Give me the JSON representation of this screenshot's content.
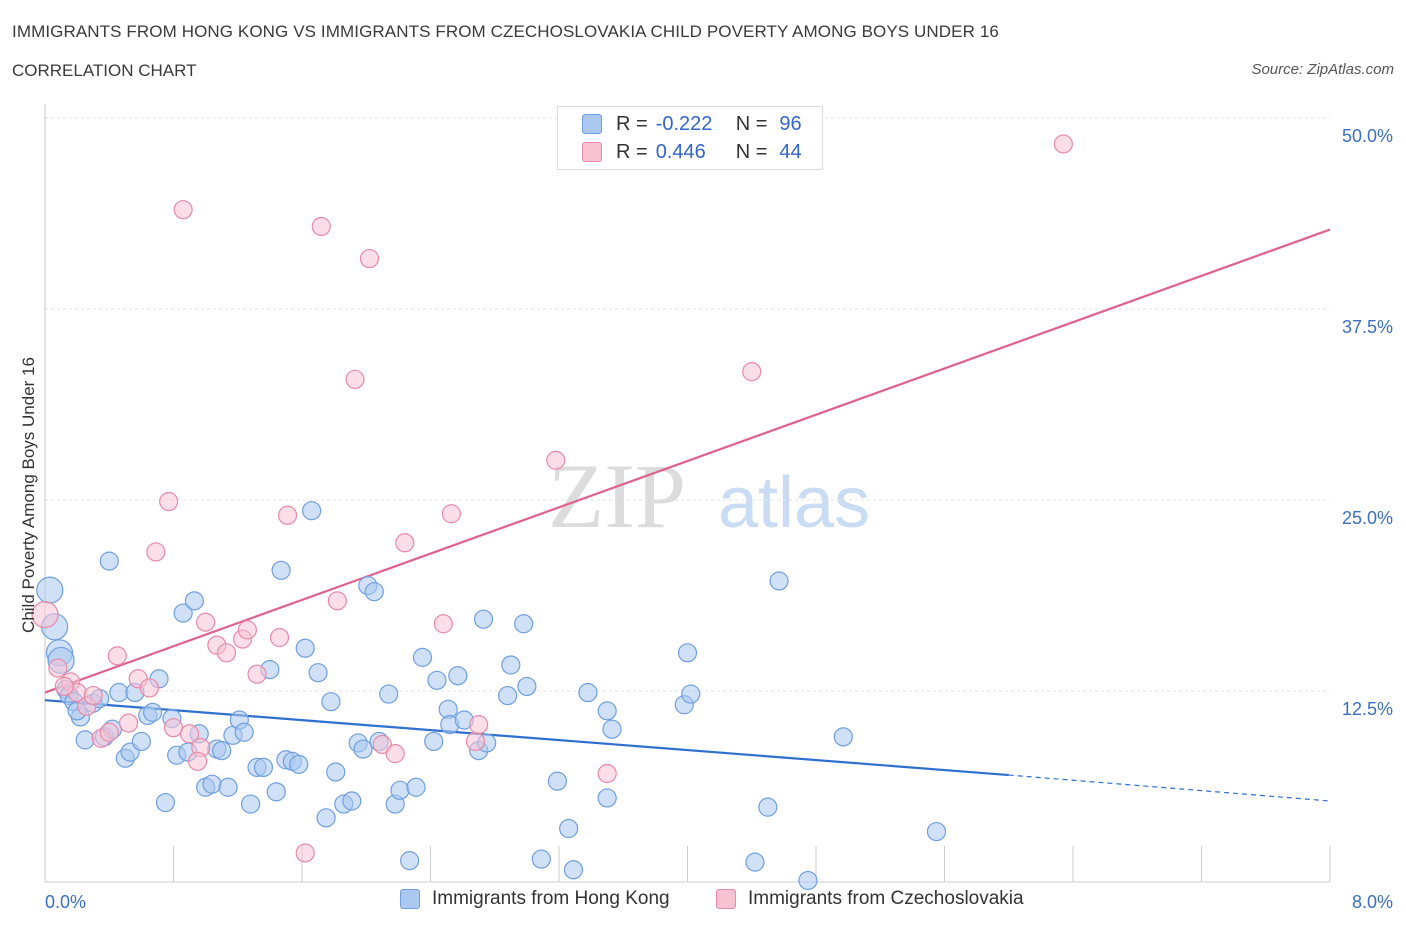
{
  "header": {
    "title": "IMMIGRANTS FROM HONG KONG VS IMMIGRANTS FROM CZECHOSLOVAKIA CHILD POVERTY AMONG BOYS UNDER 16",
    "subtitle": "CORRELATION CHART",
    "source": "Source: ZipAtlas.com"
  },
  "legend": {
    "rows": [
      {
        "r_label": "R =",
        "r_value": "-0.222",
        "n_label": "N =",
        "n_value": "96",
        "color": "#aac8f0",
        "border": "#6f9fe0"
      },
      {
        "r_label": "R =",
        "r_value": "0.446",
        "n_label": "N =",
        "n_value": "44",
        "color": "#f7c3d3",
        "border": "#e88aa8"
      }
    ]
  },
  "bottom_legend": {
    "items": [
      {
        "label": "Immigrants from Hong Kong",
        "color": "#aac8f0",
        "border": "#6f9fe0"
      },
      {
        "label": "Immigrants from Czechoslovakia",
        "color": "#f7c3d3",
        "border": "#e88aa8"
      }
    ]
  },
  "watermark": {
    "zip": "ZIP",
    "atlas": "atlas"
  },
  "chart_data": {
    "type": "scatter",
    "title": "IMMIGRANTS FROM HONG KONG VS IMMIGRANTS FROM CZECHOSLOVAKIA CHILD POVERTY AMONG BOYS UNDER 16",
    "xlabel": "",
    "ylabel": "Child Poverty Among Boys Under 16",
    "xlim": [
      0,
      8
    ],
    "ylim": [
      0,
      50
    ],
    "x_tick_labels": [
      "0.0%",
      "8.0%"
    ],
    "y_tick_labels": [
      "12.5%",
      "25.0%",
      "37.5%",
      "50.0%"
    ],
    "y_ticks": [
      12.5,
      25,
      37.5,
      50
    ],
    "grid": true,
    "series": [
      {
        "name": "Immigrants from Hong Kong",
        "color": "#6f9fe0",
        "fill": "#aac8f0",
        "trend": {
          "x0": 0,
          "y0": 11.9,
          "x1": 6.0,
          "y1": 7.0,
          "dashed_to_x": 8.0,
          "dashed_to_y": 5.3
        },
        "points": [
          [
            0.03,
            19.1
          ],
          [
            0.06,
            16.7
          ],
          [
            0.09,
            15.0
          ],
          [
            0.13,
            12.6
          ],
          [
            0.15,
            12.2
          ],
          [
            0.18,
            11.8
          ],
          [
            0.22,
            10.8
          ],
          [
            0.25,
            9.3
          ],
          [
            0.3,
            11.7
          ],
          [
            0.34,
            12.0
          ],
          [
            0.37,
            9.5
          ],
          [
            0.4,
            21.0
          ],
          [
            0.42,
            10.0
          ],
          [
            0.46,
            12.4
          ],
          [
            0.5,
            8.1
          ],
          [
            0.53,
            8.5
          ],
          [
            0.56,
            12.4
          ],
          [
            0.6,
            9.2
          ],
          [
            0.64,
            10.9
          ],
          [
            0.67,
            11.1
          ],
          [
            0.71,
            13.3
          ],
          [
            0.75,
            5.2
          ],
          [
            0.79,
            10.7
          ],
          [
            0.82,
            8.3
          ],
          [
            0.86,
            17.6
          ],
          [
            0.89,
            8.5
          ],
          [
            0.93,
            18.4
          ],
          [
            0.96,
            9.7
          ],
          [
            1.0,
            6.2
          ],
          [
            1.04,
            6.4
          ],
          [
            1.07,
            8.7
          ],
          [
            1.1,
            8.6
          ],
          [
            1.14,
            6.2
          ],
          [
            1.17,
            9.6
          ],
          [
            1.21,
            10.6
          ],
          [
            1.24,
            9.8
          ],
          [
            1.28,
            5.1
          ],
          [
            1.32,
            7.5
          ],
          [
            1.36,
            7.5
          ],
          [
            1.4,
            13.9
          ],
          [
            1.44,
            5.9
          ],
          [
            1.47,
            20.4
          ],
          [
            1.5,
            8.0
          ],
          [
            1.54,
            7.9
          ],
          [
            1.58,
            7.7
          ],
          [
            1.62,
            15.3
          ],
          [
            1.66,
            24.3
          ],
          [
            1.7,
            13.7
          ],
          [
            1.75,
            4.2
          ],
          [
            1.78,
            11.8
          ],
          [
            1.81,
            7.2
          ],
          [
            1.86,
            5.1
          ],
          [
            1.91,
            5.3
          ],
          [
            1.95,
            9.1
          ],
          [
            1.98,
            8.7
          ],
          [
            2.01,
            19.4
          ],
          [
            2.05,
            19.0
          ],
          [
            2.08,
            9.2
          ],
          [
            2.14,
            12.3
          ],
          [
            2.18,
            5.1
          ],
          [
            2.21,
            6.0
          ],
          [
            2.31,
            6.2
          ],
          [
            2.27,
            1.4
          ],
          [
            2.35,
            14.7
          ],
          [
            2.42,
            9.2
          ],
          [
            2.44,
            13.2
          ],
          [
            2.51,
            11.3
          ],
          [
            2.52,
            10.3
          ],
          [
            2.57,
            13.5
          ],
          [
            2.61,
            10.6
          ],
          [
            2.7,
            8.6
          ],
          [
            2.75,
            9.1
          ],
          [
            2.73,
            17.2
          ],
          [
            2.88,
            12.2
          ],
          [
            2.9,
            14.2
          ],
          [
            2.98,
            16.9
          ],
          [
            3.0,
            12.8
          ],
          [
            3.09,
            1.5
          ],
          [
            3.19,
            6.6
          ],
          [
            3.26,
            3.5
          ],
          [
            3.29,
            0.8
          ],
          [
            3.38,
            12.4
          ],
          [
            3.5,
            5.5
          ],
          [
            3.5,
            11.2
          ],
          [
            3.53,
            10.0
          ],
          [
            3.98,
            11.6
          ],
          [
            4.0,
            15.0
          ],
          [
            4.02,
            12.3
          ],
          [
            4.42,
            1.3
          ],
          [
            4.5,
            4.9
          ],
          [
            4.57,
            19.7
          ],
          [
            4.75,
            0.1
          ],
          [
            4.97,
            9.5
          ],
          [
            5.55,
            3.3
          ],
          [
            0.1,
            14.5
          ],
          [
            0.2,
            11.2
          ]
        ]
      },
      {
        "name": "Immigrants from Czechoslovakia",
        "color": "#e88aa8",
        "fill": "#f7c3d3",
        "trend": {
          "x0": 0,
          "y0": 12.4,
          "x1": 8.0,
          "y1": 42.7
        },
        "points": [
          [
            0.0,
            17.5
          ],
          [
            0.08,
            14.0
          ],
          [
            0.16,
            13.1
          ],
          [
            0.2,
            12.4
          ],
          [
            0.26,
            11.5
          ],
          [
            0.3,
            12.2
          ],
          [
            0.35,
            9.4
          ],
          [
            0.45,
            14.8
          ],
          [
            0.52,
            10.4
          ],
          [
            0.58,
            13.3
          ],
          [
            0.65,
            12.7
          ],
          [
            0.69,
            21.6
          ],
          [
            0.77,
            24.9
          ],
          [
            0.8,
            10.1
          ],
          [
            0.86,
            44.0
          ],
          [
            0.9,
            9.7
          ],
          [
            0.97,
            8.8
          ],
          [
            1.0,
            17.0
          ],
          [
            1.07,
            15.5
          ],
          [
            1.13,
            15.0
          ],
          [
            1.23,
            15.9
          ],
          [
            1.26,
            16.5
          ],
          [
            1.32,
            13.6
          ],
          [
            1.46,
            16.0
          ],
          [
            1.51,
            24.0
          ],
          [
            1.62,
            1.9
          ],
          [
            1.72,
            42.9
          ],
          [
            1.82,
            18.4
          ],
          [
            1.93,
            32.9
          ],
          [
            2.02,
            40.8
          ],
          [
            2.1,
            9.0
          ],
          [
            2.18,
            8.4
          ],
          [
            2.24,
            22.2
          ],
          [
            2.48,
            16.9
          ],
          [
            2.53,
            24.1
          ],
          [
            2.68,
            9.2
          ],
          [
            2.7,
            10.3
          ],
          [
            3.18,
            27.6
          ],
          [
            3.5,
            7.1
          ],
          [
            4.4,
            33.4
          ],
          [
            6.34,
            48.3
          ],
          [
            0.12,
            12.8
          ],
          [
            0.4,
            9.8
          ],
          [
            0.95,
            7.9
          ]
        ]
      }
    ]
  }
}
